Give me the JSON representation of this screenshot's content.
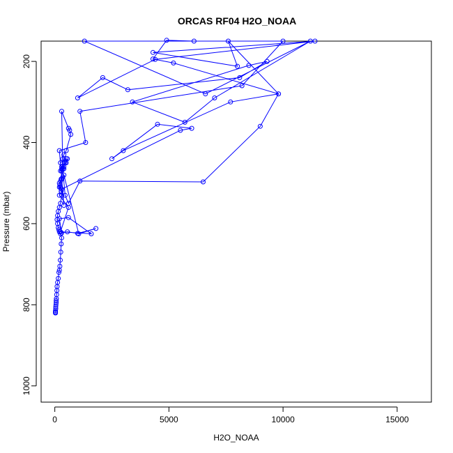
{
  "chart_data": {
    "type": "scatter",
    "title": "ORCAS RF04 H2O_NOAA",
    "xlabel": "H2O_NOAA",
    "ylabel": "Pressure (mbar)",
    "xlim": [
      -600,
      16500
    ],
    "ylim": [
      1040,
      150
    ],
    "y_reversed": true,
    "x_ticks": [
      0,
      5000,
      10000,
      15000
    ],
    "x_tick_labels": [
      "0",
      "5000",
      "10000",
      "15000"
    ],
    "y_ticks": [
      200,
      400,
      600,
      800,
      1000
    ],
    "y_tick_labels": [
      "200",
      "400",
      "600",
      "800",
      "1000"
    ],
    "grid": false,
    "legend": "none",
    "connect_points": true,
    "marker": "open-circle",
    "color": "#0000ff",
    "series": [
      {
        "x": [
          30,
          30,
          30,
          30,
          40,
          40,
          50,
          60,
          60,
          70,
          80,
          90,
          100,
          120,
          150,
          180,
          200,
          220,
          240,
          260,
          280,
          300,
          250,
          200,
          180,
          150,
          120,
          100,
          120,
          150,
          200,
          250,
          300,
          280,
          250,
          220,
          200,
          250,
          300,
          350,
          400,
          1050,
          1800,
          1000,
          550,
          300,
          200,
          600,
          1600,
          250,
          600,
          200,
          200,
          280,
          300,
          400,
          500,
          550,
          300,
          250,
          500,
          400,
          250,
          300,
          450,
          350,
          400,
          500,
          700,
          650,
          600,
          300,
          350,
          450,
          600,
          1100,
          6500,
          9000,
          9800,
          7700,
          3000,
          2500,
          4500,
          6000,
          5500,
          300,
          400,
          200,
          1350,
          1100,
          8200,
          10000,
          1300,
          6600,
          11200,
          7000,
          5700,
          3400,
          8500,
          9300,
          8100,
          3200,
          2100,
          1000,
          4400,
          11400,
          4300,
          8000,
          7600,
          9800,
          5200,
          4300,
          4900,
          6100
        ],
        "y": [
          820,
          820,
          818,
          815,
          810,
          805,
          800,
          795,
          790,
          785,
          775,
          765,
          755,
          745,
          735,
          720,
          715,
          705,
          690,
          670,
          650,
          635,
          625,
          620,
          615,
          610,
          600,
          590,
          580,
          570,
          560,
          550,
          530,
          520,
          510,
          505,
          500,
          495,
          490,
          485,
          480,
          625,
          612,
          624,
          620,
          623,
          588,
          585,
          625,
          620,
          560,
          530,
          510,
          490,
          470,
          460,
          450,
          440,
          465,
          450,
          440,
          465,
          470,
          460,
          450,
          440,
          430,
          420,
          380,
          370,
          365,
          323,
          465,
          530,
          550,
          495,
          497,
          360,
          280,
          300,
          420,
          440,
          355,
          365,
          370,
          515,
          555,
          420,
          400,
          323,
          260,
          150,
          150,
          280,
          150,
          290,
          350,
          300,
          210,
          200,
          240,
          270,
          240,
          290,
          195,
          150,
          178,
          212,
          150,
          280,
          204,
          194,
          148,
          150
        ]
      }
    ]
  }
}
